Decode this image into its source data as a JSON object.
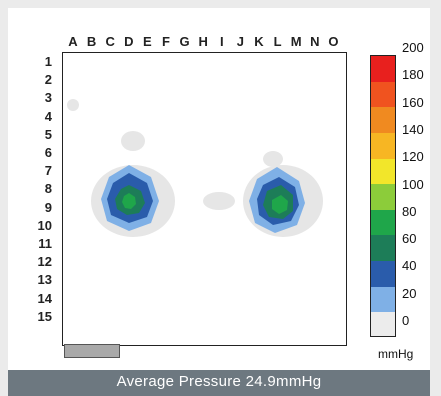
{
  "columns": [
    "A",
    "B",
    "C",
    "D",
    "E",
    "F",
    "G",
    "H",
    "I",
    "J",
    "K",
    "L",
    "M",
    "N",
    "O"
  ],
  "rows": [
    "1",
    "2",
    "3",
    "4",
    "5",
    "6",
    "7",
    "8",
    "9",
    "10",
    "11",
    "12",
    "13",
    "14",
    "15"
  ],
  "colorbar": {
    "ticks": [
      "200",
      "180",
      "160",
      "140",
      "120",
      "100",
      "80",
      "60",
      "40",
      "20",
      "0"
    ],
    "unit": "mmHg",
    "colors": [
      "#e8201e",
      "#f0531f",
      "#f08a20",
      "#f7b623",
      "#f2e62a",
      "#8ccc3a",
      "#1fa64a",
      "#1d7d58",
      "#2a5cab",
      "#7fb0e6",
      "#ececec"
    ]
  },
  "heatmap": {
    "low_color": "#e6e6e6",
    "ring_colors": [
      "#7fb0e6",
      "#2a5cab",
      "#1d7d58",
      "#1fa64a"
    ]
  },
  "summary": {
    "label": "Average Pressure",
    "value": "24.9mmHg"
  }
}
